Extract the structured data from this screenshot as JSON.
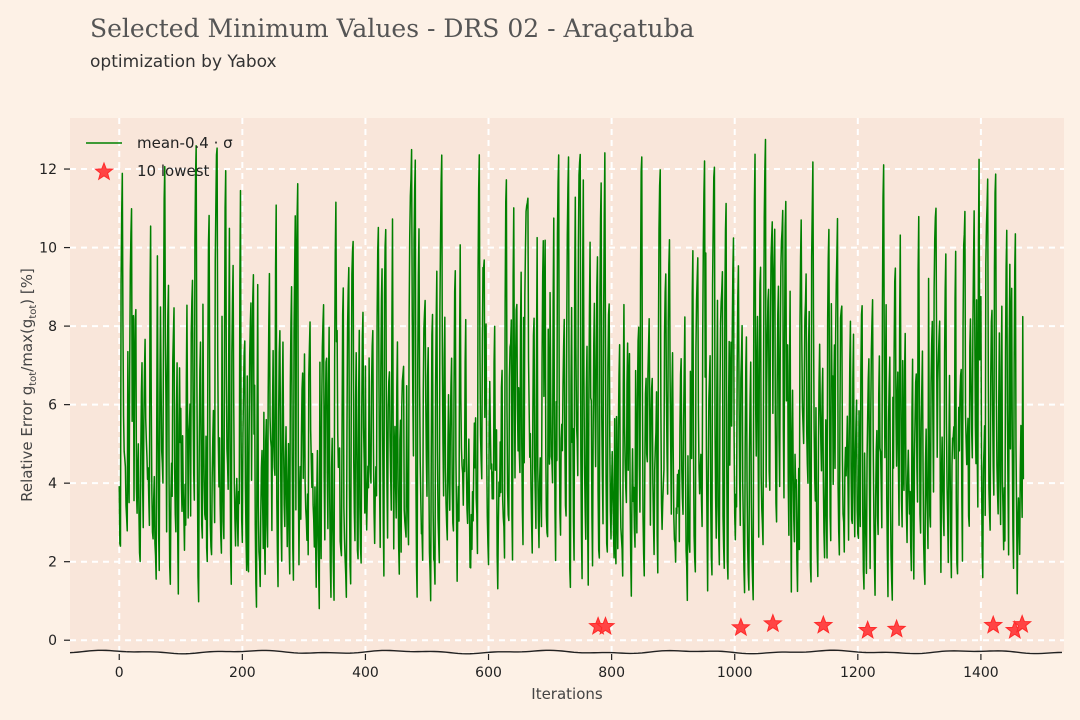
{
  "header": {
    "title": "Selected Minimum Values - DRS 02 - Araçatuba",
    "subtitle": "optimization by Yabox"
  },
  "colors": {
    "background": "#fdf1e6",
    "plot_area": "#f9e6da",
    "grid": "#ffffff",
    "series_line": "#008000",
    "marker": "#ff2a2a"
  },
  "chart_data": {
    "type": "line",
    "title": "Selected Minimum Values - DRS 02 - Araçatuba",
    "subtitle": "optimization by Yabox",
    "xlabel": "Iterations",
    "ylabel": "Relative Error g_tot/max(g_tot) [%]",
    "xlim": [
      -80,
      1535
    ],
    "ylim": [
      -0.3,
      13.3
    ],
    "x_ticks": [
      0,
      200,
      400,
      600,
      800,
      1000,
      1200,
      1400
    ],
    "y_ticks": [
      0,
      2,
      4,
      6,
      8,
      10,
      12
    ],
    "grid": true,
    "grid_style": "dashed",
    "legend_position": "top-left",
    "series": [
      {
        "name": "mean-0.4 · σ",
        "type": "line",
        "n_points": 1470,
        "x_range": [
          0,
          1469
        ],
        "approx_range": [
          0.5,
          13.0
        ]
      },
      {
        "name": "10 lowest",
        "type": "scatter",
        "marker": "star",
        "points": [
          {
            "x": 778,
            "y": 0.35
          },
          {
            "x": 790,
            "y": 0.35
          },
          {
            "x": 1010,
            "y": 0.32
          },
          {
            "x": 1062,
            "y": 0.42
          },
          {
            "x": 1144,
            "y": 0.38
          },
          {
            "x": 1216,
            "y": 0.25
          },
          {
            "x": 1263,
            "y": 0.28
          },
          {
            "x": 1420,
            "y": 0.38
          },
          {
            "x": 1455,
            "y": 0.25
          },
          {
            "x": 1467,
            "y": 0.4
          }
        ]
      }
    ]
  }
}
